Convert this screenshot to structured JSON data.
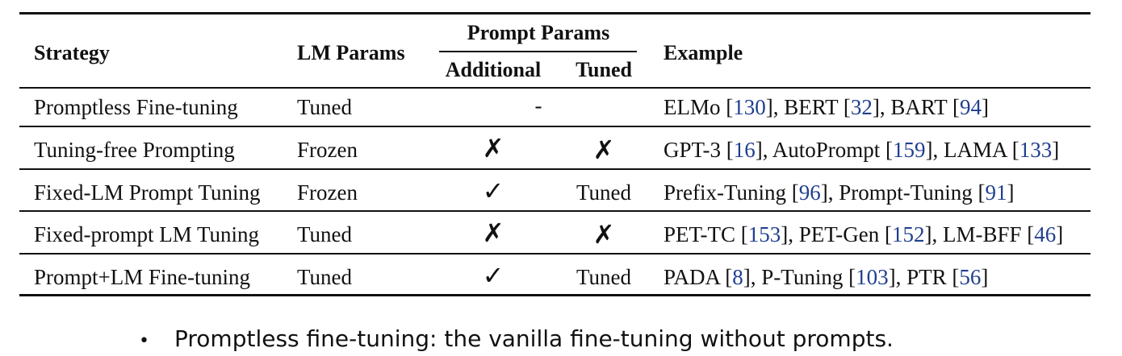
{
  "table": {
    "headers": {
      "strategy": "Strategy",
      "lm_params": "LM Params",
      "prompt_params": "Prompt Params",
      "additional": "Additional",
      "tuned": "Tuned",
      "example": "Example"
    },
    "rows": [
      {
        "strategy": "Promptless Fine-tuning",
        "lm_params": "Tuned",
        "prompt_span": "-",
        "example": [
          {
            "t": "ELMo ["
          },
          {
            "t": "130",
            "ref": true
          },
          {
            "t": "], BERT ["
          },
          {
            "t": "32",
            "ref": true
          },
          {
            "t": "], BART ["
          },
          {
            "t": "94",
            "ref": true
          },
          {
            "t": "]"
          }
        ]
      },
      {
        "strategy": "Tuning-free Prompting",
        "lm_params": "Frozen",
        "additional": "✗",
        "tuned": "✗",
        "example": [
          {
            "t": "GPT-3 ["
          },
          {
            "t": "16",
            "ref": true
          },
          {
            "t": "], AutoPrompt ["
          },
          {
            "t": "159",
            "ref": true
          },
          {
            "t": "], LAMA ["
          },
          {
            "t": "133",
            "ref": true
          },
          {
            "t": "]"
          }
        ]
      },
      {
        "strategy": "Fixed-LM Prompt Tuning",
        "lm_params": "Frozen",
        "additional": "✓",
        "tuned": "Tuned",
        "example": [
          {
            "t": "Prefix-Tuning ["
          },
          {
            "t": "96",
            "ref": true
          },
          {
            "t": "], Prompt-Tuning ["
          },
          {
            "t": "91",
            "ref": true
          },
          {
            "t": "]"
          }
        ]
      },
      {
        "strategy": "Fixed-prompt LM Tuning",
        "lm_params": "Tuned",
        "additional": "✗",
        "tuned": "✗",
        "example": [
          {
            "t": "PET-TC ["
          },
          {
            "t": "153",
            "ref": true
          },
          {
            "t": "], PET-Gen ["
          },
          {
            "t": "152",
            "ref": true
          },
          {
            "t": "], LM-BFF ["
          },
          {
            "t": "46",
            "ref": true
          },
          {
            "t": "]"
          }
        ]
      },
      {
        "strategy": "Prompt+LM Fine-tuning",
        "lm_params": "Tuned",
        "additional": "✓",
        "tuned": "Tuned",
        "example": [
          {
            "t": "PADA ["
          },
          {
            "t": "8",
            "ref": true
          },
          {
            "t": "], P-Tuning ["
          },
          {
            "t": "103",
            "ref": true
          },
          {
            "t": "], PTR ["
          },
          {
            "t": "56",
            "ref": true
          },
          {
            "t": "]"
          }
        ]
      }
    ]
  },
  "bullet": {
    "marker": "•",
    "text": "Promptless fine-tuning: the vanilla fine-tuning without prompts."
  }
}
